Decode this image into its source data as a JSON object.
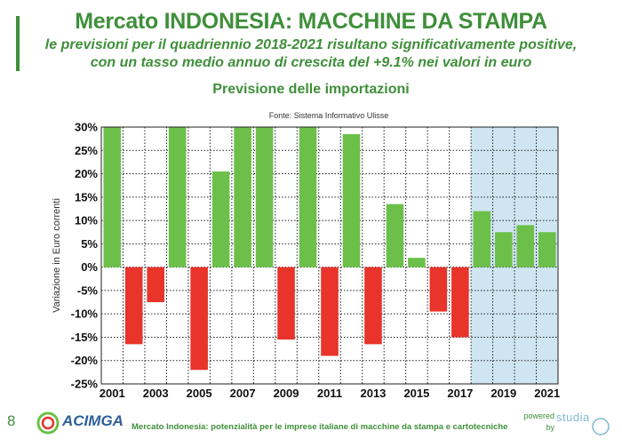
{
  "header": {
    "title": "Mercato INDONESIA: MACCHINE DA STAMPA",
    "subtitle_line1": "le previsioni per il quadriennio 2018-2021 risultano significativamente positive,",
    "subtitle_line2": "con un tasso medio annuo di crescita del +9.1% nei valori in euro",
    "section_title": "Previsione delle importazioni",
    "source": "Fonte: Sistema Informativo Ulisse"
  },
  "colors": {
    "brand_green": "#3f8f3a",
    "positive_bar": "#6cc04a",
    "negative_bar": "#e8342a",
    "forecast_bg": "#cfe6f2"
  },
  "chart_data": {
    "type": "bar",
    "categories": [
      "2001",
      "2002",
      "2003",
      "2004",
      "2005",
      "2006",
      "2007",
      "2008",
      "2009",
      "2010",
      "2011",
      "2012",
      "2013",
      "2014",
      "2015",
      "2016",
      "2017",
      "2018",
      "2019",
      "2020",
      "2021"
    ],
    "values": [
      30,
      -16.5,
      -7.5,
      30,
      -22,
      20.5,
      30,
      30,
      -15.5,
      30,
      -19,
      28.5,
      -16.5,
      13.5,
      2,
      -9.5,
      -15,
      12,
      7.5,
      9,
      7.5
    ],
    "tick_labels_x": [
      "2001",
      "2003",
      "2005",
      "2007",
      "2009",
      "2011",
      "2013",
      "2015",
      "2017",
      "2019",
      "2021"
    ],
    "tick_labels_y": [
      "30%",
      "25%",
      "20%",
      "15%",
      "10%",
      "5%",
      "0%",
      "-5%",
      "-10%",
      "-15%",
      "-20%",
      "-25%"
    ],
    "ylabel": "Variazione in Euro correnti",
    "ylim": [
      -25,
      30
    ],
    "grid": true,
    "forecast_years": [
      "2018",
      "2019",
      "2020",
      "2021"
    ]
  },
  "footer": {
    "page_number": "8",
    "logo_text": "ACIMGA",
    "text": "Mercato Indonesia: potenzialità per le imprese italiane di macchine da stampa e cartotecniche",
    "powered_line1": "powered",
    "powered_line2": "by",
    "studia_logo": "studia"
  }
}
